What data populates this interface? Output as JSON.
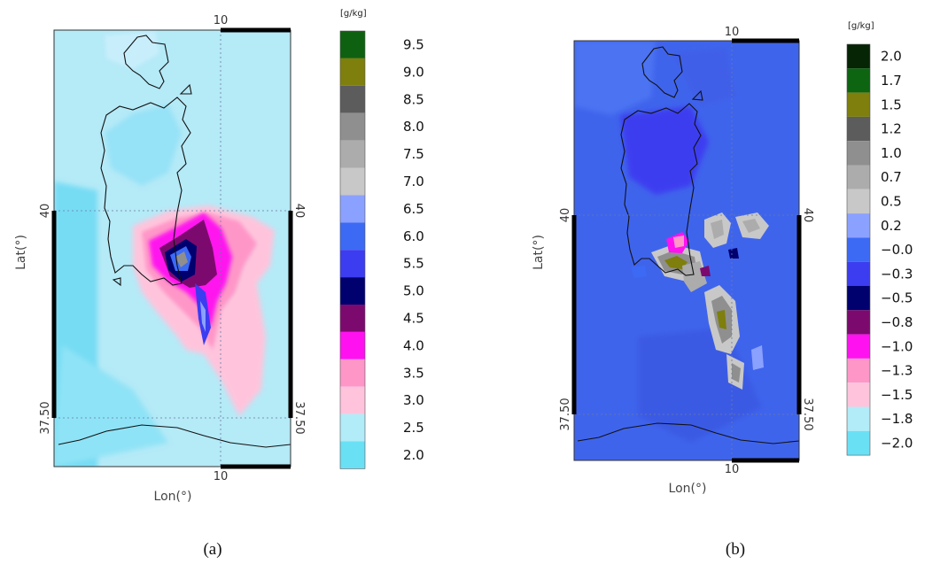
{
  "panels": [
    {
      "id": "a",
      "label": "(a)",
      "unit": "[g/kg]",
      "x_axis_label": "Lon(°)",
      "y_axis_label": "Lat(°)",
      "lon_tick": "10",
      "lat_ticks": [
        "40",
        "37.50"
      ],
      "colorbar_labels": [
        "9.5",
        "9.0",
        "8.5",
        "8.0",
        "7.5",
        "7.0",
        "6.5",
        "6.0",
        "5.5",
        "5.0",
        "4.5",
        "4.0",
        "3.5",
        "3.0",
        "2.5",
        "2.0"
      ],
      "colorbar_colors": [
        "#0e6110",
        "#7e7f0c",
        "#5c5c5c",
        "#8f8f8f",
        "#acacac",
        "#c8c8c8",
        "#8ba1ff",
        "#3c6af5",
        "#3c3cf0",
        "#00006e",
        "#7c0a6e",
        "#ff12ef",
        "#ff96c8",
        "#ffc4dc",
        "#b2ecf8",
        "#6ae0f5"
      ],
      "background_color": "#b5eaf7"
    },
    {
      "id": "b",
      "label": "(b)",
      "unit": "[g/kg]",
      "x_axis_label": "Lon(°)",
      "y_axis_label": "Lat(°)",
      "lon_tick": "10",
      "lat_ticks": [
        "40",
        "37.50"
      ],
      "colorbar_labels": [
        "2.0",
        "1.7",
        "1.5",
        "1.2",
        "1.0",
        "0.7",
        "0.5",
        "0.2",
        "−0.0",
        "−0.3",
        "−0.5",
        "−0.8",
        "−1.0",
        "−1.3",
        "−1.5",
        "−1.8",
        "−2.0"
      ],
      "colorbar_colors": [
        "#052505",
        "#0d6411",
        "#7e7f0c",
        "#5c5c5c",
        "#8f8f8f",
        "#acacac",
        "#c8c8c8",
        "#8ba1ff",
        "#3c6af5",
        "#3c3cf0",
        "#00006e",
        "#7c0a6e",
        "#ff12ef",
        "#ff96c8",
        "#ffc4dc",
        "#b2ecf8",
        "#6ae0f5"
      ],
      "background_color": "#3f64ec"
    }
  ]
}
